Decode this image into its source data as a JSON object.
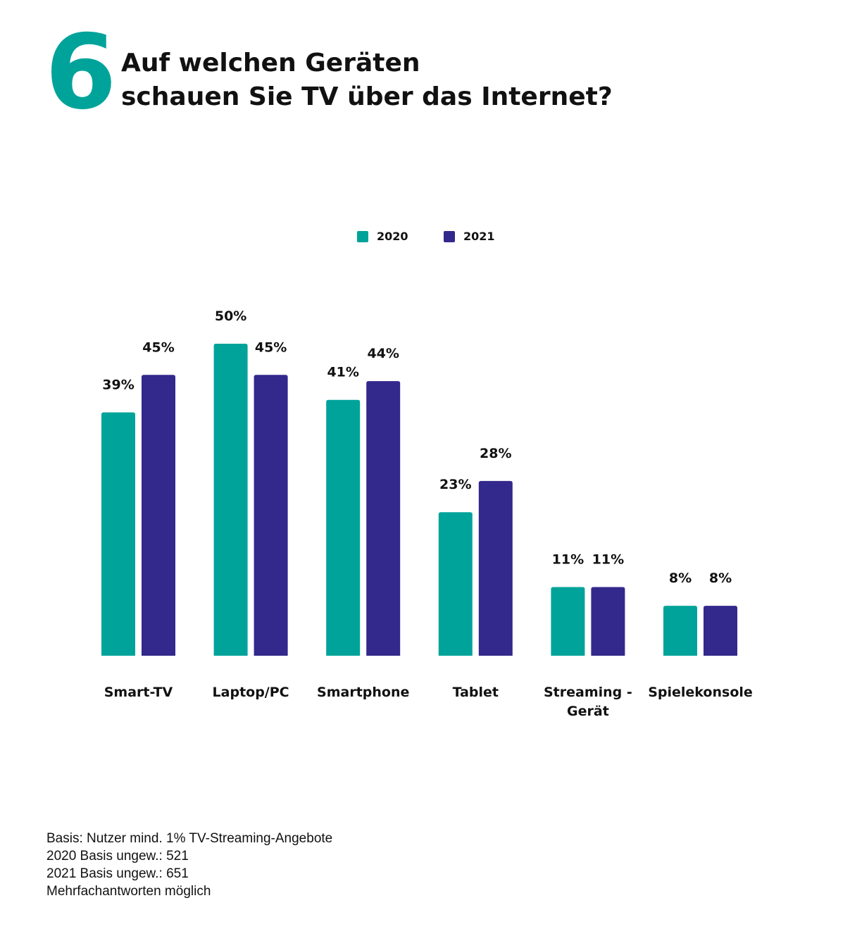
{
  "header": {
    "number": "6",
    "title_line1": "Auf welchen Geräten",
    "title_line2": "schauen Sie TV über das Internet?"
  },
  "colors": {
    "accent": "#00a39a",
    "series_2020": "#00a39a",
    "series_2021": "#33288c"
  },
  "chart_data": {
    "type": "bar",
    "title": "Auf welchen Geräten schauen Sie TV über das Internet?",
    "categories": [
      [
        "Smart-TV"
      ],
      [
        "Laptop/PC"
      ],
      [
        "Smartphone"
      ],
      [
        "Tablet"
      ],
      [
        "Streaming -",
        "Gerät"
      ],
      [
        "Spielekonsole"
      ]
    ],
    "series": [
      {
        "name": "2020",
        "color": "#00a39a",
        "values": [
          39,
          50,
          41,
          23,
          11,
          8
        ],
        "labels": [
          "39%",
          "50%",
          "41%",
          "23%",
          "11%",
          "8%"
        ]
      },
      {
        "name": "2021",
        "color": "#33288c",
        "values": [
          45,
          45,
          44,
          28,
          11,
          8
        ],
        "labels": [
          "45%",
          "45%",
          "44%",
          "28%",
          "11%",
          "8%"
        ]
      }
    ],
    "ylim": [
      0,
      50
    ],
    "xlabel": "",
    "ylabel": "",
    "grid": false,
    "legend": "top-center"
  },
  "footnote": {
    "line1": "Basis: Nutzer mind. 1%  TV-Streaming-Angebote",
    "line2": "2020 Basis ungew.: 521",
    "line3": "2021 Basis ungew.: 651",
    "line4": "Mehrfachantworten möglich"
  }
}
